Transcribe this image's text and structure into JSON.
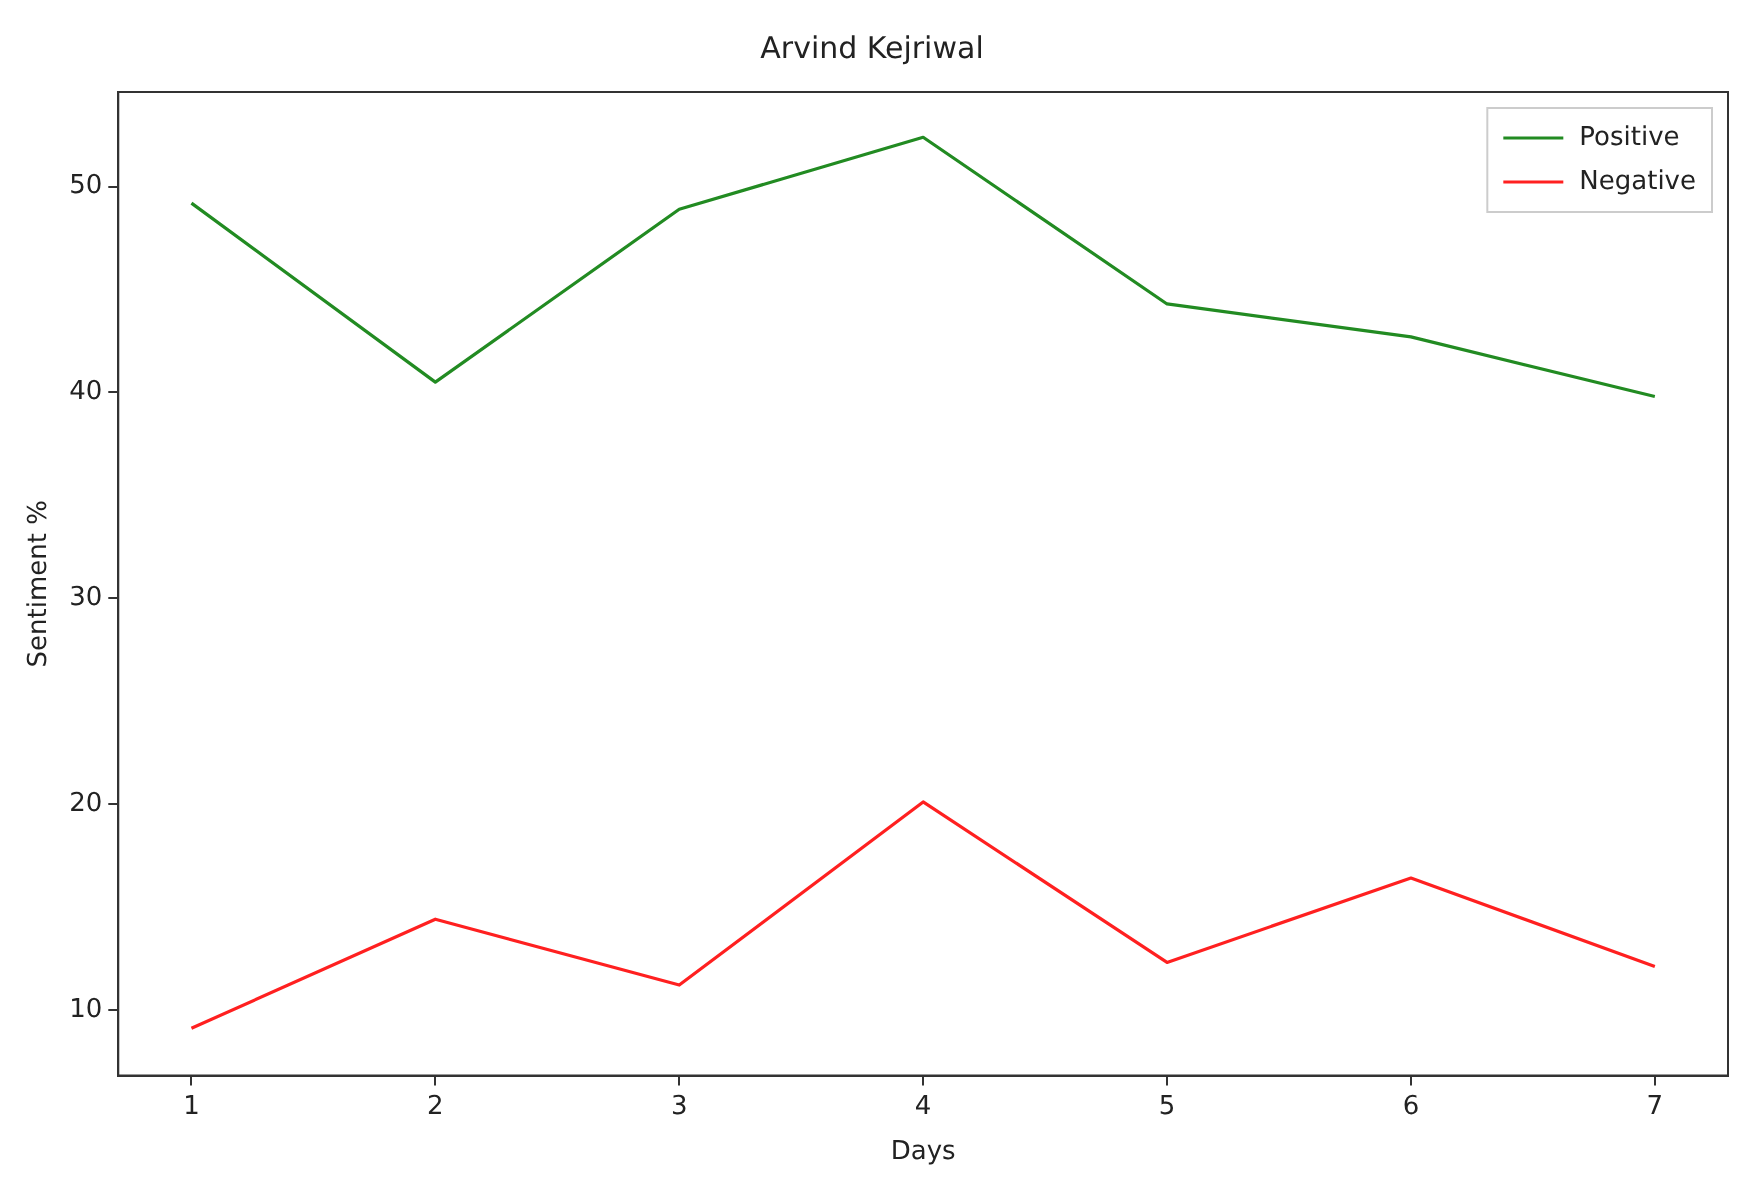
{
  "chart_data": {
    "type": "line",
    "title": "Arvind Kejriwal",
    "xlabel": "Days",
    "ylabel": "Sentiment %",
    "x": [
      1,
      2,
      3,
      4,
      5,
      6,
      7
    ],
    "series": [
      {
        "name": "Positive",
        "color": "#228b22",
        "values": [
          49.2,
          40.5,
          48.9,
          52.4,
          44.3,
          42.7,
          39.8
        ]
      },
      {
        "name": "Negative",
        "color": "#ff2020",
        "values": [
          9.1,
          14.4,
          11.2,
          20.1,
          12.3,
          16.4,
          12.1
        ]
      }
    ],
    "xlim": [
      0.7,
      7.3
    ],
    "xticks": [
      1,
      2,
      3,
      4,
      5,
      6,
      7
    ],
    "ylim": [
      6.8,
      54.6
    ],
    "yticks": [
      10,
      20,
      30,
      40,
      50
    ],
    "grid": false,
    "legend": "top right",
    "marker": "none",
    "line_style": "solid"
  }
}
